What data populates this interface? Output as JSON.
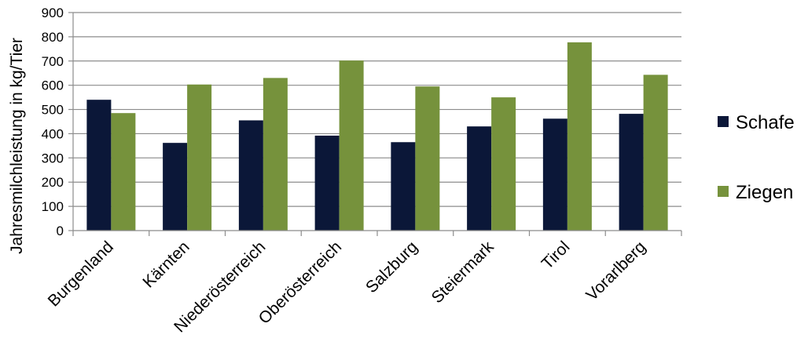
{
  "chart_data": {
    "type": "bar",
    "title": "",
    "xlabel": "",
    "ylabel": "Jahresmilchleistung in kg/Tier",
    "ylim": [
      0,
      900
    ],
    "yticks": [
      0,
      100,
      200,
      300,
      400,
      500,
      600,
      700,
      800,
      900
    ],
    "grid": true,
    "legend_position": "right",
    "categories": [
      "Burgenland",
      "Kärnten",
      "Niederösterreich",
      "Oberösterreich",
      "Salzburg",
      "Steiermark",
      "Tirol",
      "Vorarlberg"
    ],
    "series": [
      {
        "name": "Schafe",
        "color": "#0b1738",
        "values": [
          540,
          362,
          455,
          392,
          365,
          430,
          462,
          482
        ]
      },
      {
        "name": "Ziegen",
        "color": "#76923c",
        "values": [
          485,
          603,
          630,
          702,
          595,
          550,
          777,
          643
        ]
      }
    ]
  }
}
